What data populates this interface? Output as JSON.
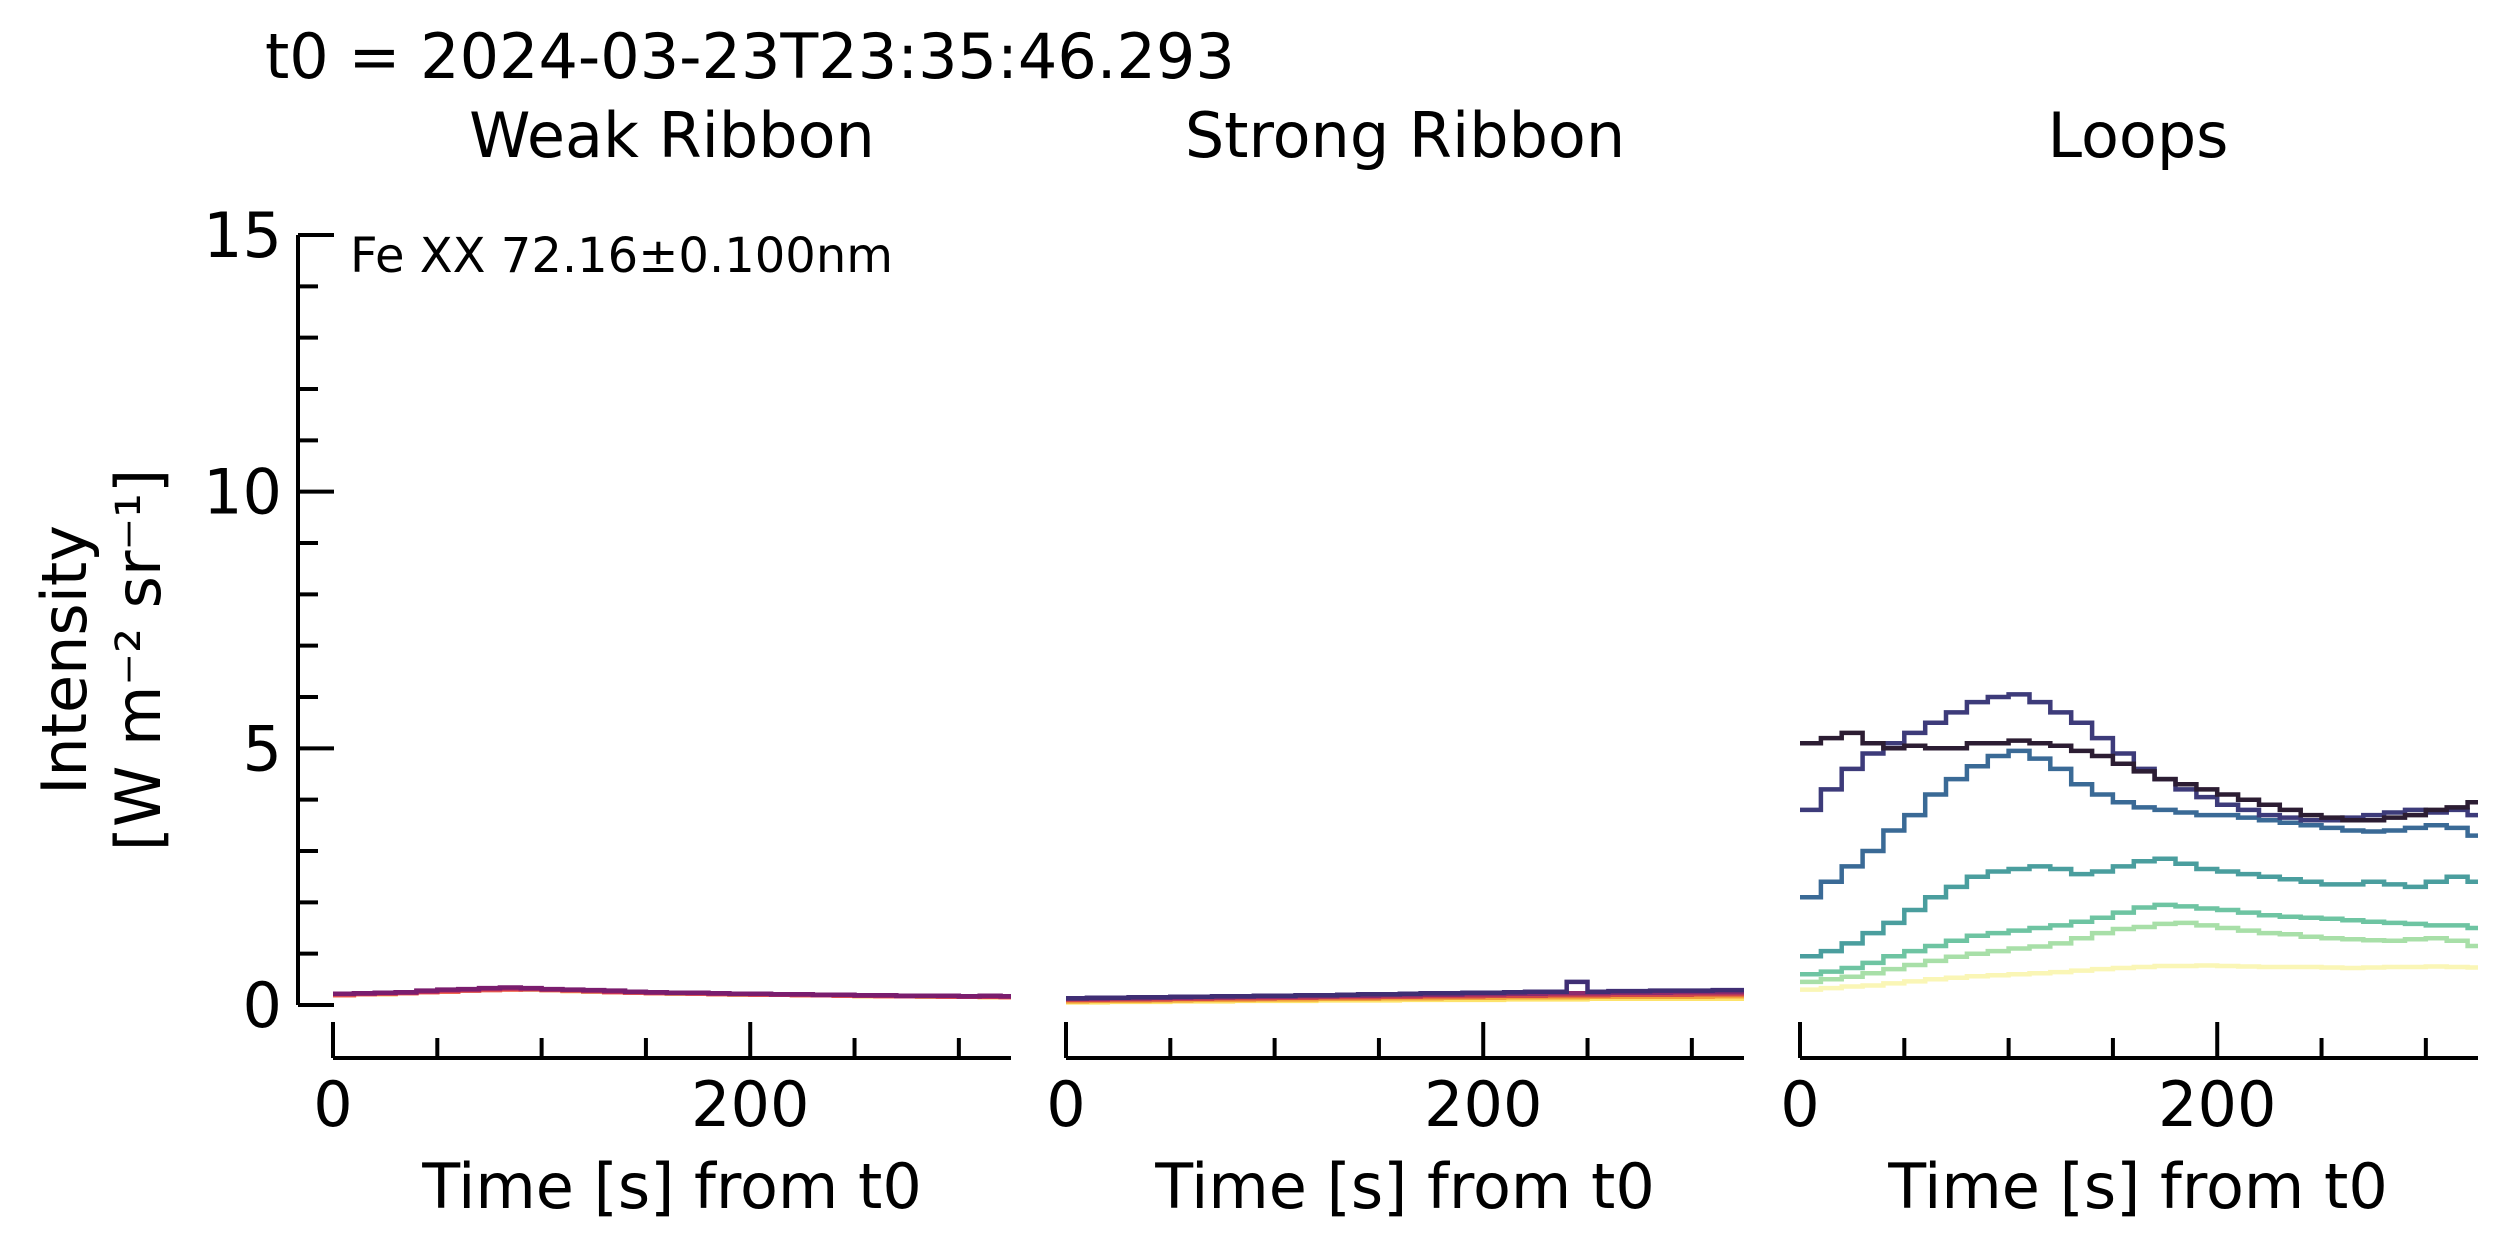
{
  "figure": {
    "suptitle": "t0 = 2024-03-23T23:35:46.293",
    "ylabel_line1": "Intensity",
    "ylabel_line2": "[W m⁻² sr⁻¹]",
    "annotation": "Fe XX 72.16±0.100nm"
  },
  "chart_data": [
    {
      "type": "line",
      "title": "Weak Ribbon",
      "xlabel": "Time [s] from t0",
      "ylabel": "Intensity [W m⁻² sr⁻¹]",
      "xlim": [
        0,
        325
      ],
      "ylim": [
        0,
        15
      ],
      "xticks": [
        0,
        200
      ],
      "yticks": [
        0,
        5,
        10,
        15
      ],
      "drawstyle": "steps",
      "grid": false,
      "x": [
        0,
        10,
        20,
        30,
        40,
        50,
        60,
        70,
        80,
        90,
        100,
        110,
        120,
        130,
        140,
        150,
        160,
        170,
        180,
        190,
        200,
        210,
        220,
        230,
        240,
        250,
        260,
        270,
        280,
        290,
        300,
        310,
        320
      ],
      "series": [
        {
          "color": "#f5c86a",
          "values": [
            0.2,
            0.22,
            0.21,
            0.24,
            0.26,
            0.27,
            0.28,
            0.3,
            0.31,
            0.3,
            0.29,
            0.27,
            0.26,
            0.25,
            0.24,
            0.23,
            0.22,
            0.22,
            0.21,
            0.2,
            0.21,
            0.2,
            0.19,
            0.2,
            0.18,
            0.17,
            0.18,
            0.17,
            0.16,
            0.17,
            0.16,
            0.15,
            0.16
          ]
        },
        {
          "color": "#ef6a4d",
          "values": [
            0.19,
            0.21,
            0.22,
            0.23,
            0.25,
            0.26,
            0.28,
            0.29,
            0.3,
            0.31,
            0.29,
            0.28,
            0.27,
            0.25,
            0.24,
            0.23,
            0.23,
            0.22,
            0.21,
            0.21,
            0.2,
            0.2,
            0.19,
            0.19,
            0.18,
            0.18,
            0.17,
            0.17,
            0.17,
            0.16,
            0.16,
            0.16,
            0.15
          ]
        },
        {
          "color": "#c2305b",
          "values": [
            0.21,
            0.22,
            0.23,
            0.24,
            0.26,
            0.28,
            0.29,
            0.31,
            0.32,
            0.31,
            0.3,
            0.29,
            0.27,
            0.26,
            0.25,
            0.24,
            0.23,
            0.23,
            0.22,
            0.21,
            0.21,
            0.2,
            0.2,
            0.19,
            0.19,
            0.18,
            0.18,
            0.17,
            0.17,
            0.17,
            0.16,
            0.16,
            0.16
          ]
        },
        {
          "color": "#7a1d6e",
          "values": [
            0.22,
            0.23,
            0.24,
            0.25,
            0.28,
            0.3,
            0.31,
            0.33,
            0.34,
            0.33,
            0.31,
            0.3,
            0.29,
            0.28,
            0.26,
            0.25,
            0.24,
            0.24,
            0.23,
            0.22,
            0.22,
            0.21,
            0.21,
            0.2,
            0.2,
            0.19,
            0.19,
            0.18,
            0.18,
            0.18,
            0.17,
            0.18,
            0.17
          ]
        }
      ]
    },
    {
      "type": "line",
      "title": "Strong Ribbon",
      "xlabel": "Time [s] from t0",
      "ylabel": "",
      "xlim": [
        0,
        325
      ],
      "ylim": [
        0,
        15
      ],
      "xticks": [
        0,
        200
      ],
      "yticks": [
        0,
        5,
        10,
        15
      ],
      "drawstyle": "steps",
      "grid": false,
      "x": [
        0,
        10,
        20,
        30,
        40,
        50,
        60,
        70,
        80,
        90,
        100,
        110,
        120,
        130,
        140,
        150,
        160,
        170,
        180,
        190,
        200,
        210,
        220,
        230,
        240,
        250,
        260,
        270,
        280,
        290,
        300,
        310,
        320
      ],
      "series": [
        {
          "color": "#fde36b",
          "values": [
            0.05,
            0.05,
            0.06,
            0.06,
            0.06,
            0.07,
            0.07,
            0.07,
            0.08,
            0.08,
            0.08,
            0.08,
            0.09,
            0.09,
            0.09,
            0.09,
            0.1,
            0.1,
            0.1,
            0.1,
            0.1,
            0.11,
            0.11,
            0.11,
            0.11,
            0.12,
            0.12,
            0.12,
            0.12,
            0.12,
            0.12,
            0.12,
            0.12
          ]
        },
        {
          "color": "#f1a23b",
          "values": [
            0.07,
            0.08,
            0.08,
            0.08,
            0.09,
            0.09,
            0.1,
            0.1,
            0.1,
            0.11,
            0.11,
            0.11,
            0.12,
            0.12,
            0.12,
            0.13,
            0.13,
            0.13,
            0.14,
            0.14,
            0.14,
            0.15,
            0.15,
            0.15,
            0.15,
            0.16,
            0.16,
            0.16,
            0.16,
            0.16,
            0.16,
            0.17,
            0.17
          ]
        },
        {
          "color": "#d2474b",
          "values": [
            0.1,
            0.1,
            0.11,
            0.11,
            0.11,
            0.12,
            0.12,
            0.13,
            0.13,
            0.13,
            0.14,
            0.14,
            0.15,
            0.15,
            0.15,
            0.16,
            0.16,
            0.17,
            0.17,
            0.17,
            0.18,
            0.18,
            0.18,
            0.19,
            0.19,
            0.19,
            0.2,
            0.2,
            0.2,
            0.2,
            0.21,
            0.21,
            0.21
          ]
        },
        {
          "color": "#8e2a6e",
          "values": [
            0.12,
            0.12,
            0.13,
            0.13,
            0.14,
            0.14,
            0.15,
            0.15,
            0.16,
            0.16,
            0.16,
            0.17,
            0.17,
            0.18,
            0.18,
            0.19,
            0.19,
            0.2,
            0.2,
            0.21,
            0.21,
            0.22,
            0.22,
            0.23,
            0.23,
            0.23,
            0.24,
            0.24,
            0.24,
            0.25,
            0.25,
            0.25,
            0.25
          ]
        },
        {
          "color": "#3f2e74",
          "values": [
            0.13,
            0.14,
            0.14,
            0.15,
            0.15,
            0.16,
            0.16,
            0.17,
            0.17,
            0.18,
            0.18,
            0.19,
            0.19,
            0.2,
            0.21,
            0.21,
            0.22,
            0.23,
            0.23,
            0.24,
            0.24,
            0.25,
            0.26,
            0.26,
            0.45,
            0.26,
            0.27,
            0.27,
            0.28,
            0.28,
            0.28,
            0.29,
            0.29
          ]
        }
      ]
    },
    {
      "type": "line",
      "title": "Loops",
      "xlabel": "Time [s] from t0",
      "ylabel": "",
      "xlim": [
        0,
        325
      ],
      "ylim": [
        0,
        15
      ],
      "xticks": [
        0,
        200
      ],
      "yticks": [
        0,
        5,
        10,
        15
      ],
      "drawstyle": "steps",
      "grid": false,
      "x": [
        0,
        10,
        20,
        30,
        40,
        50,
        60,
        70,
        80,
        90,
        100,
        110,
        120,
        130,
        140,
        150,
        160,
        170,
        180,
        190,
        200,
        210,
        220,
        230,
        240,
        250,
        260,
        270,
        280,
        290,
        300,
        310,
        320
      ],
      "series": [
        {
          "color": "#faf6b6",
          "values": [
            0.3,
            0.33,
            0.36,
            0.38,
            0.42,
            0.46,
            0.5,
            0.53,
            0.56,
            0.58,
            0.6,
            0.62,
            0.64,
            0.67,
            0.7,
            0.72,
            0.74,
            0.76,
            0.76,
            0.77,
            0.76,
            0.75,
            0.74,
            0.74,
            0.74,
            0.73,
            0.72,
            0.73,
            0.74,
            0.74,
            0.75,
            0.74,
            0.73
          ]
        },
        {
          "color": "#a8dfa8",
          "values": [
            0.45,
            0.5,
            0.55,
            0.62,
            0.7,
            0.78,
            0.86,
            0.94,
            1.0,
            1.05,
            1.1,
            1.14,
            1.2,
            1.3,
            1.4,
            1.48,
            1.52,
            1.58,
            1.6,
            1.55,
            1.5,
            1.45,
            1.4,
            1.38,
            1.33,
            1.3,
            1.28,
            1.26,
            1.25,
            1.28,
            1.3,
            1.25,
            1.15
          ]
        },
        {
          "color": "#6ec4a2",
          "values": [
            0.6,
            0.65,
            0.72,
            0.82,
            0.95,
            1.05,
            1.15,
            1.25,
            1.35,
            1.4,
            1.45,
            1.5,
            1.55,
            1.62,
            1.7,
            1.8,
            1.9,
            1.95,
            1.92,
            1.88,
            1.85,
            1.8,
            1.75,
            1.72,
            1.7,
            1.68,
            1.65,
            1.62,
            1.6,
            1.58,
            1.55,
            1.55,
            1.5
          ]
        },
        {
          "color": "#4a9e9e",
          "values": [
            0.95,
            1.05,
            1.2,
            1.4,
            1.6,
            1.85,
            2.1,
            2.3,
            2.5,
            2.6,
            2.65,
            2.7,
            2.65,
            2.55,
            2.6,
            2.7,
            2.8,
            2.85,
            2.75,
            2.65,
            2.6,
            2.55,
            2.5,
            2.45,
            2.4,
            2.35,
            2.35,
            2.4,
            2.35,
            2.3,
            2.4,
            2.5,
            2.4
          ]
        },
        {
          "color": "#3a6a96",
          "values": [
            2.1,
            2.4,
            2.7,
            3.0,
            3.4,
            3.7,
            4.1,
            4.4,
            4.65,
            4.85,
            4.95,
            4.8,
            4.6,
            4.3,
            4.1,
            3.95,
            3.85,
            3.8,
            3.75,
            3.7,
            3.7,
            3.65,
            3.6,
            3.55,
            3.5,
            3.45,
            3.4,
            3.38,
            3.4,
            3.45,
            3.5,
            3.45,
            3.3
          ]
        },
        {
          "color": "#3d3b7a",
          "values": [
            3.8,
            4.2,
            4.6,
            4.9,
            5.1,
            5.3,
            5.5,
            5.7,
            5.9,
            6.0,
            6.05,
            5.9,
            5.7,
            5.5,
            5.2,
            4.9,
            4.6,
            4.4,
            4.2,
            4.05,
            3.9,
            3.8,
            3.7,
            3.65,
            3.6,
            3.6,
            3.65,
            3.7,
            3.75,
            3.8,
            3.75,
            3.8,
            3.7
          ]
        },
        {
          "color": "#2c1d33",
          "values": [
            5.1,
            5.2,
            5.3,
            5.1,
            5.0,
            5.05,
            5.0,
            5.0,
            5.1,
            5.1,
            5.15,
            5.1,
            5.05,
            4.95,
            4.85,
            4.7,
            4.55,
            4.4,
            4.3,
            4.2,
            4.1,
            4.0,
            3.9,
            3.8,
            3.7,
            3.65,
            3.6,
            3.6,
            3.65,
            3.7,
            3.8,
            3.85,
            3.95
          ]
        }
      ]
    }
  ]
}
